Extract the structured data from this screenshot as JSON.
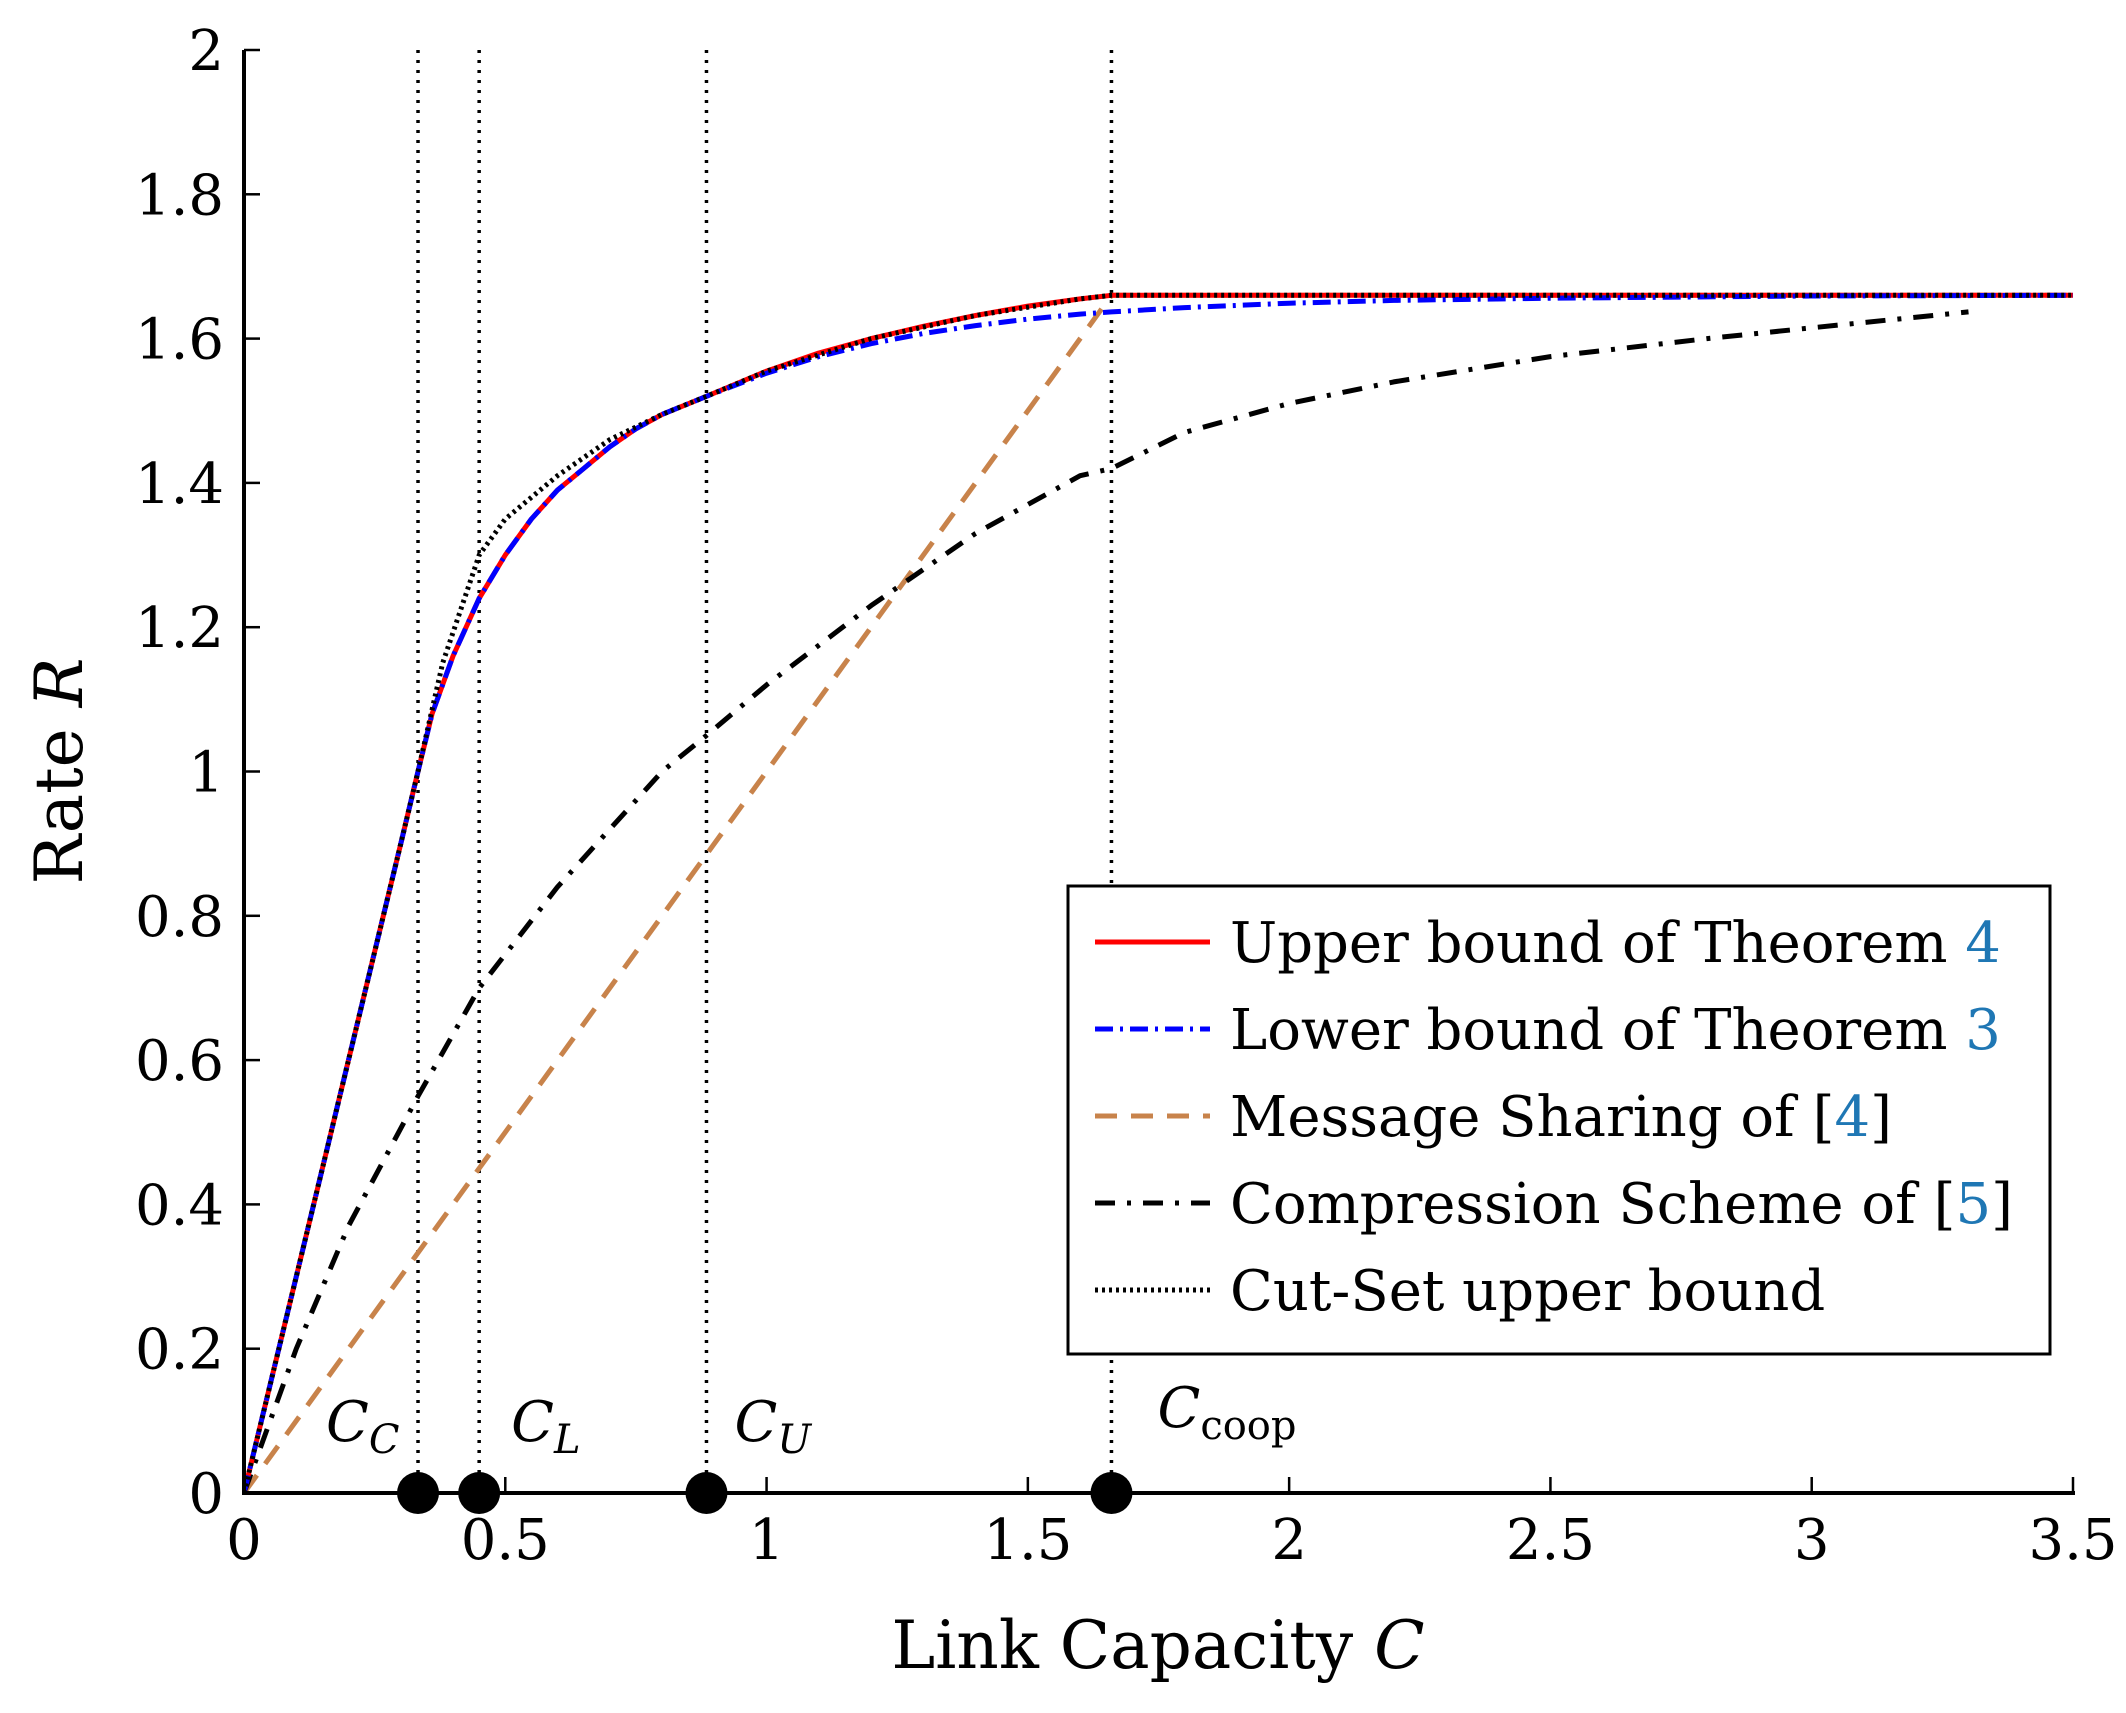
{
  "chart_data": {
    "type": "line",
    "xlabel": "Link Capacity",
    "xlabel_var": "C",
    "ylabel": "Rate",
    "ylabel_var": "R",
    "xlim": [
      0,
      3.5
    ],
    "ylim": [
      0,
      2
    ],
    "xticks": [
      0,
      0.5,
      1,
      1.5,
      2,
      2.5,
      3,
      3.5
    ],
    "xtick_labels": [
      "0",
      "0.5",
      "1",
      "1.5",
      "2",
      "2.5",
      "3",
      "3.5"
    ],
    "yticks": [
      0,
      0.2,
      0.4,
      0.6,
      0.8,
      1,
      1.2,
      1.4,
      1.6,
      1.8,
      2
    ],
    "ytick_labels": [
      "0",
      "0.2",
      "0.4",
      "0.6",
      "0.8",
      "1",
      "1.2",
      "1.4",
      "1.6",
      "1.8",
      "2"
    ],
    "legend_position": "center-right",
    "markers": [
      {
        "label": "C",
        "sub": "C",
        "x": 0.333
      },
      {
        "label": "C",
        "sub": "L",
        "x": 0.45
      },
      {
        "label": "C",
        "sub": "U",
        "x": 0.885
      },
      {
        "label": "C",
        "sub": "coop",
        "x": 1.66
      }
    ],
    "series": [
      {
        "name": "Upper bound of Theorem",
        "ref": "4",
        "color": "#ff0000",
        "style": "solid",
        "x": [
          0,
          0.05,
          0.1,
          0.15,
          0.2,
          0.25,
          0.3,
          0.333,
          0.36,
          0.4,
          0.45,
          0.5,
          0.55,
          0.6,
          0.65,
          0.7,
          0.75,
          0.8,
          0.885,
          1.0,
          1.1,
          1.2,
          1.3,
          1.4,
          1.5,
          1.6,
          1.66,
          2.0,
          2.5,
          3.0,
          3.5
        ],
        "y": [
          0,
          0.15,
          0.3,
          0.45,
          0.6,
          0.75,
          0.9,
          1.0,
          1.08,
          1.16,
          1.24,
          1.3,
          1.35,
          1.39,
          1.42,
          1.45,
          1.475,
          1.495,
          1.52,
          1.555,
          1.58,
          1.6,
          1.617,
          1.632,
          1.645,
          1.655,
          1.66,
          1.66,
          1.66,
          1.66,
          1.66
        ]
      },
      {
        "name": "Lower bound of Theorem",
        "ref": "3",
        "color": "#0000ff",
        "style": "dashdot",
        "x": [
          0,
          0.05,
          0.1,
          0.15,
          0.2,
          0.25,
          0.3,
          0.333,
          0.36,
          0.4,
          0.45,
          0.5,
          0.55,
          0.6,
          0.65,
          0.7,
          0.75,
          0.8,
          0.885,
          1.0,
          1.1,
          1.2,
          1.3,
          1.4,
          1.5,
          1.6,
          1.66,
          1.8,
          2.0,
          2.2,
          2.5,
          3.0,
          3.5
        ],
        "y": [
          0,
          0.15,
          0.3,
          0.45,
          0.6,
          0.75,
          0.9,
          1.0,
          1.08,
          1.16,
          1.24,
          1.3,
          1.35,
          1.39,
          1.42,
          1.45,
          1.475,
          1.495,
          1.52,
          1.552,
          1.575,
          1.593,
          1.607,
          1.618,
          1.627,
          1.634,
          1.637,
          1.643,
          1.649,
          1.653,
          1.656,
          1.659,
          1.66
        ]
      },
      {
        "name": "Message Sharing of",
        "ref": "4",
        "color": "#c8834b",
        "style": "dashed",
        "x": [
          0,
          1.66,
          2.0,
          2.5,
          3.0,
          3.5
        ],
        "y": [
          0,
          1.66,
          1.66,
          1.66,
          1.66,
          1.66
        ]
      },
      {
        "name": "Compression Scheme of",
        "ref": "5",
        "color": "#000000",
        "style": "dashdotted-black",
        "x": [
          0,
          0.1,
          0.2,
          0.333,
          0.45,
          0.6,
          0.8,
          0.885,
          1.0,
          1.2,
          1.4,
          1.6,
          1.66,
          1.8,
          2.0,
          2.2,
          2.5,
          2.8,
          3.0,
          3.3
        ],
        "y": [
          0,
          0.2,
          0.37,
          0.55,
          0.7,
          0.84,
          1.0,
          1.05,
          1.12,
          1.23,
          1.33,
          1.41,
          1.42,
          1.47,
          1.51,
          1.54,
          1.575,
          1.6,
          1.615,
          1.637
        ]
      },
      {
        "name": "Cut-Set upper bound",
        "ref": "",
        "color": "#000000",
        "style": "dotted",
        "x": [
          0,
          0.1,
          0.2,
          0.3,
          0.333,
          0.38,
          0.45,
          0.5,
          0.6,
          0.7,
          0.8,
          0.885,
          1.0,
          1.2,
          1.4,
          1.6,
          1.66,
          2.0,
          2.5,
          3.0,
          3.5
        ],
        "y": [
          0,
          0.3,
          0.6,
          0.9,
          1.0,
          1.15,
          1.3,
          1.35,
          1.41,
          1.46,
          1.495,
          1.52,
          1.555,
          1.6,
          1.632,
          1.655,
          1.66,
          1.66,
          1.66,
          1.66,
          1.66
        ]
      }
    ]
  },
  "colors": {
    "ref_link": "#1f77b4"
  }
}
